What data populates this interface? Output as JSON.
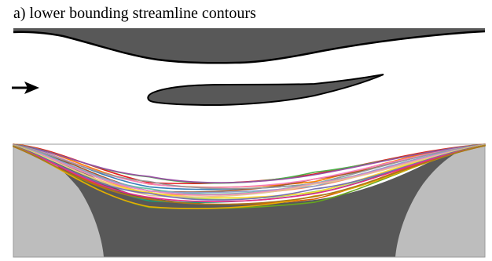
{
  "caption": {
    "text": "a) lower bounding streamline contours"
  },
  "colors": {
    "ink": "#000000",
    "dark_fill": "#585858",
    "light_fill": "#bdbdbd",
    "background": "#ffffff"
  },
  "streamlines": {
    "colors": [
      "#e41a1c",
      "#ff7f00",
      "#4daf4a",
      "#984ea3",
      "#377eb8",
      "#a65628",
      "#f781bf",
      "#999999",
      "#66c2a5",
      "#fc8d62",
      "#8da0cb",
      "#e78ac3",
      "#a6d854",
      "#ffd92f",
      "#e5c494",
      "#1b9e77",
      "#d95f02",
      "#7570b3",
      "#e7298a",
      "#66a61e",
      "#e6ab02",
      "#a6761d"
    ]
  }
}
